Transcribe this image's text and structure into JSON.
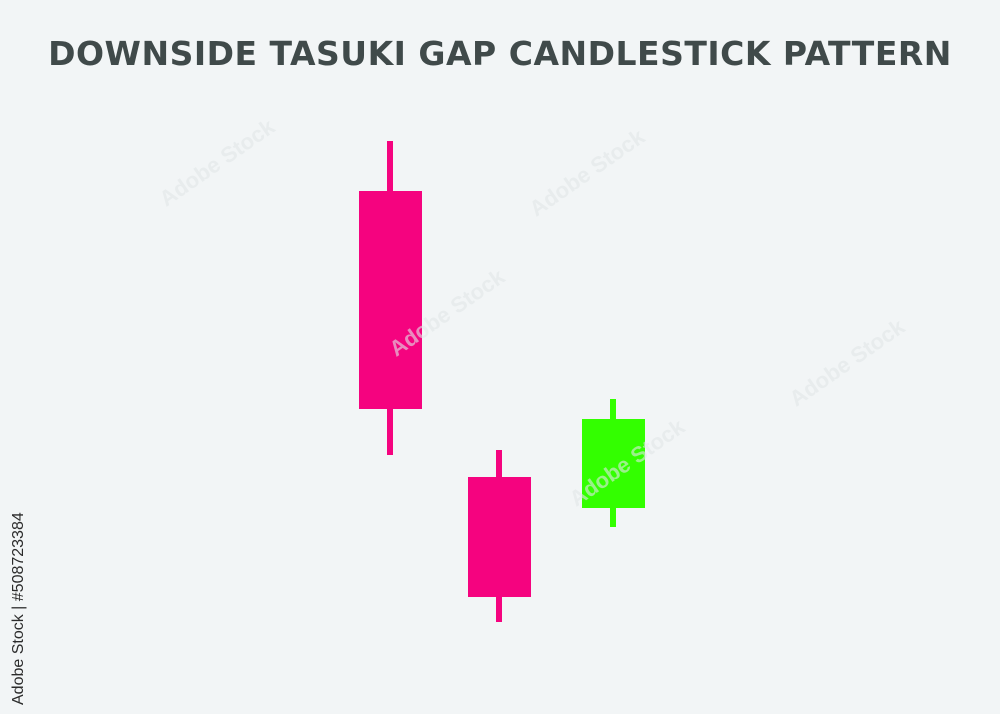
{
  "title": "DOWNSIDE TASUKI GAP CANDLESTICK PATTERN",
  "colors": {
    "bearish": "#f5037f",
    "bullish": "#33ff00",
    "background": "#f2f5f6",
    "title": "#404a4a"
  },
  "candles": [
    {
      "direction": "bearish"
    },
    {
      "direction": "bearish"
    },
    {
      "direction": "bullish"
    }
  ],
  "side_label": "Adobe Stock | #508723384",
  "watermark": "Adobe Stock"
}
